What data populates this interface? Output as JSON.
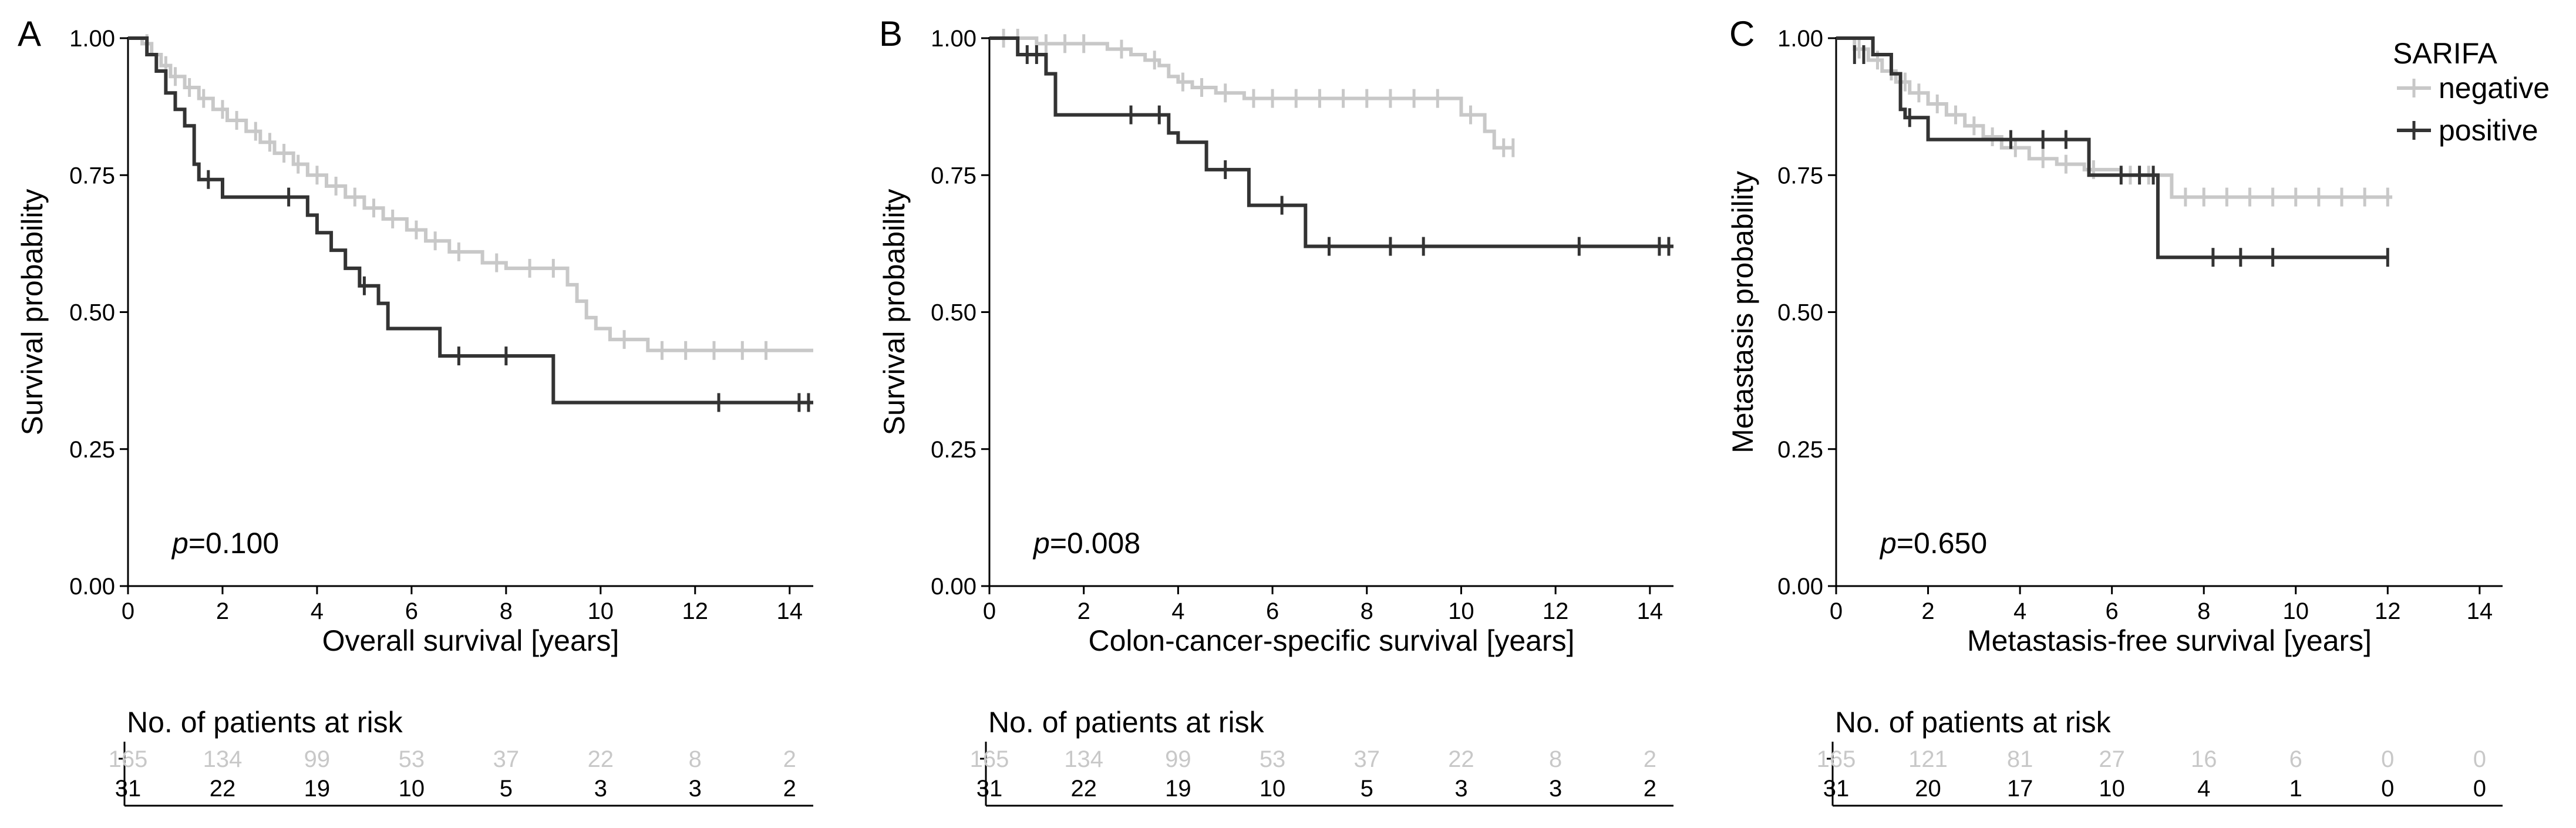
{
  "colors": {
    "negative": "#c8c8c8",
    "positive": "#333333",
    "axis": "#000000"
  },
  "legend": {
    "title": "SARIFA",
    "items": [
      {
        "label": "negative",
        "color": "#c8c8c8"
      },
      {
        "label": "positive",
        "color": "#333333"
      }
    ],
    "placement": "top-right"
  },
  "chart_data": [
    {
      "type": "line",
      "panel": "A",
      "title": "",
      "xlabel": "Overall survival [years]",
      "ylabel": "Survival probability",
      "xlim": [
        0,
        14.5
      ],
      "ylim": [
        0,
        1
      ],
      "xticks": [
        0,
        2,
        4,
        6,
        8,
        10,
        12,
        14
      ],
      "yticks": [
        0,
        0.25,
        0.5,
        0.75,
        1.0
      ],
      "ytick_labels": [
        "0.00",
        "0.25",
        "0.50",
        "0.75",
        "1.00"
      ],
      "pvalue_prefix": "p",
      "pvalue": "=0.100",
      "series": [
        {
          "name": "negative",
          "steps": [
            [
              0,
              1.0
            ],
            [
              0.3,
              0.99
            ],
            [
              0.5,
              0.97
            ],
            [
              0.7,
              0.95
            ],
            [
              0.9,
              0.93
            ],
            [
              1.2,
              0.91
            ],
            [
              1.5,
              0.89
            ],
            [
              1.8,
              0.87
            ],
            [
              2.1,
              0.85
            ],
            [
              2.5,
              0.83
            ],
            [
              2.8,
              0.81
            ],
            [
              3.1,
              0.79
            ],
            [
              3.5,
              0.77
            ],
            [
              3.8,
              0.75
            ],
            [
              4.2,
              0.73
            ],
            [
              4.6,
              0.71
            ],
            [
              5.0,
              0.69
            ],
            [
              5.4,
              0.67
            ],
            [
              5.9,
              0.65
            ],
            [
              6.3,
              0.63
            ],
            [
              6.8,
              0.61
            ],
            [
              7.5,
              0.59
            ],
            [
              8.0,
              0.58
            ],
            [
              9.3,
              0.55
            ],
            [
              9.5,
              0.52
            ],
            [
              9.7,
              0.49
            ],
            [
              9.9,
              0.47
            ],
            [
              10.2,
              0.45
            ],
            [
              11.0,
              0.43
            ],
            [
              14.5,
              0.43
            ]
          ],
          "censors": [
            [
              0.4,
              0.99
            ],
            [
              0.8,
              0.95
            ],
            [
              1.0,
              0.93
            ],
            [
              1.3,
              0.91
            ],
            [
              1.6,
              0.89
            ],
            [
              2.0,
              0.87
            ],
            [
              2.3,
              0.85
            ],
            [
              2.7,
              0.83
            ],
            [
              3.0,
              0.81
            ],
            [
              3.3,
              0.79
            ],
            [
              3.6,
              0.77
            ],
            [
              4.0,
              0.75
            ],
            [
              4.4,
              0.73
            ],
            [
              4.8,
              0.71
            ],
            [
              5.2,
              0.69
            ],
            [
              5.6,
              0.67
            ],
            [
              6.1,
              0.65
            ],
            [
              6.5,
              0.63
            ],
            [
              7.0,
              0.61
            ],
            [
              7.8,
              0.59
            ],
            [
              8.5,
              0.58
            ],
            [
              9.0,
              0.58
            ],
            [
              10.5,
              0.45
            ],
            [
              11.3,
              0.43
            ],
            [
              11.8,
              0.43
            ],
            [
              12.4,
              0.43
            ],
            [
              13.0,
              0.43
            ],
            [
              13.5,
              0.43
            ]
          ]
        },
        {
          "name": "positive",
          "steps": [
            [
              0,
              1.0
            ],
            [
              0.4,
              0.97
            ],
            [
              0.6,
              0.94
            ],
            [
              0.8,
              0.9
            ],
            [
              1.0,
              0.87
            ],
            [
              1.2,
              0.84
            ],
            [
              1.4,
              0.77
            ],
            [
              1.5,
              0.742
            ],
            [
              2.0,
              0.71
            ],
            [
              3.8,
              0.677
            ],
            [
              4.0,
              0.645
            ],
            [
              4.3,
              0.613
            ],
            [
              4.6,
              0.58
            ],
            [
              4.9,
              0.548
            ],
            [
              5.3,
              0.516
            ],
            [
              5.5,
              0.47
            ],
            [
              6.6,
              0.42
            ],
            [
              9.0,
              0.335
            ],
            [
              14.5,
              0.335
            ]
          ],
          "censors": [
            [
              1.7,
              0.742
            ],
            [
              3.4,
              0.71
            ],
            [
              5.0,
              0.548
            ],
            [
              7.0,
              0.42
            ],
            [
              8.0,
              0.42
            ],
            [
              12.5,
              0.335
            ],
            [
              14.2,
              0.335
            ],
            [
              14.4,
              0.335
            ]
          ]
        }
      ],
      "risk_table": {
        "title": "No. of patients at risk",
        "times": [
          0,
          2,
          4,
          6,
          8,
          10,
          12,
          14
        ],
        "negative": [
          "165",
          "134",
          "99",
          "53",
          "37",
          "22",
          "8",
          "2"
        ],
        "positive": [
          "31",
          "22",
          "19",
          "10",
          "5",
          "3",
          "3",
          "2"
        ]
      }
    },
    {
      "type": "line",
      "panel": "B",
      "title": "",
      "xlabel": "Colon-cancer-specific survival [years]",
      "ylabel": "Survival probability",
      "xlim": [
        0,
        14.5
      ],
      "ylim": [
        0,
        1
      ],
      "xticks": [
        0,
        2,
        4,
        6,
        8,
        10,
        12,
        14
      ],
      "yticks": [
        0,
        0.25,
        0.5,
        0.75,
        1.0
      ],
      "ytick_labels": [
        "0.00",
        "0.25",
        "0.50",
        "0.75",
        "1.00"
      ],
      "pvalue_prefix": "p",
      "pvalue": "=0.008",
      "series": [
        {
          "name": "negative",
          "steps": [
            [
              0,
              1.0
            ],
            [
              1.0,
              0.99
            ],
            [
              2.5,
              0.98
            ],
            [
              3.0,
              0.97
            ],
            [
              3.3,
              0.96
            ],
            [
              3.6,
              0.95
            ],
            [
              3.8,
              0.93
            ],
            [
              4.0,
              0.92
            ],
            [
              4.3,
              0.91
            ],
            [
              4.8,
              0.9
            ],
            [
              5.4,
              0.89
            ],
            [
              10.0,
              0.86
            ],
            [
              10.5,
              0.83
            ],
            [
              10.7,
              0.8
            ],
            [
              11.1,
              0.8
            ]
          ],
          "censors": [
            [
              0.3,
              1.0
            ],
            [
              0.6,
              1.0
            ],
            [
              1.2,
              0.99
            ],
            [
              1.6,
              0.99
            ],
            [
              2.0,
              0.99
            ],
            [
              2.8,
              0.98
            ],
            [
              3.5,
              0.96
            ],
            [
              4.1,
              0.92
            ],
            [
              4.5,
              0.91
            ],
            [
              5.0,
              0.9
            ],
            [
              5.6,
              0.89
            ],
            [
              6.0,
              0.89
            ],
            [
              6.5,
              0.89
            ],
            [
              7.0,
              0.89
            ],
            [
              7.5,
              0.89
            ],
            [
              8.0,
              0.89
            ],
            [
              8.5,
              0.89
            ],
            [
              9.0,
              0.89
            ],
            [
              9.5,
              0.89
            ],
            [
              10.2,
              0.86
            ],
            [
              10.9,
              0.8
            ],
            [
              11.1,
              0.8
            ]
          ]
        },
        {
          "name": "positive",
          "steps": [
            [
              0,
              1.0
            ],
            [
              0.6,
              0.97
            ],
            [
              1.2,
              0.935
            ],
            [
              1.4,
              0.86
            ],
            [
              3.8,
              0.827
            ],
            [
              4.0,
              0.81
            ],
            [
              4.6,
              0.76
            ],
            [
              5.5,
              0.695
            ],
            [
              6.7,
              0.62
            ],
            [
              14.5,
              0.62
            ]
          ],
          "censors": [
            [
              0.8,
              0.97
            ],
            [
              1.0,
              0.97
            ],
            [
              3.0,
              0.86
            ],
            [
              3.6,
              0.86
            ],
            [
              5.0,
              0.76
            ],
            [
              6.2,
              0.695
            ],
            [
              7.2,
              0.62
            ],
            [
              8.5,
              0.62
            ],
            [
              9.2,
              0.62
            ],
            [
              12.5,
              0.62
            ],
            [
              14.2,
              0.62
            ],
            [
              14.4,
              0.62
            ]
          ]
        }
      ],
      "risk_table": {
        "title": "No. of patients at risk",
        "times": [
          0,
          2,
          4,
          6,
          8,
          10,
          12,
          14
        ],
        "negative": [
          "165",
          "134",
          "99",
          "53",
          "37",
          "22",
          "8",
          "2"
        ],
        "positive": [
          "31",
          "22",
          "19",
          "10",
          "5",
          "3",
          "3",
          "2"
        ]
      }
    },
    {
      "type": "line",
      "panel": "C",
      "title": "",
      "xlabel": "Metastasis-free survival [years]",
      "ylabel": "Metastasis probability",
      "xlim": [
        0,
        14.5
      ],
      "ylim": [
        0,
        1
      ],
      "xticks": [
        0,
        2,
        4,
        6,
        8,
        10,
        12,
        14
      ],
      "yticks": [
        0,
        0.25,
        0.5,
        0.75,
        1.0
      ],
      "ytick_labels": [
        "0.00",
        "0.25",
        "0.50",
        "0.75",
        "1.00"
      ],
      "pvalue_prefix": "p",
      "pvalue": "=0.650",
      "series": [
        {
          "name": "negative",
          "steps": [
            [
              0,
              1.0
            ],
            [
              0.4,
              0.98
            ],
            [
              0.7,
              0.96
            ],
            [
              1.0,
              0.94
            ],
            [
              1.3,
              0.92
            ],
            [
              1.6,
              0.9
            ],
            [
              2.0,
              0.88
            ],
            [
              2.4,
              0.86
            ],
            [
              2.8,
              0.84
            ],
            [
              3.2,
              0.82
            ],
            [
              3.6,
              0.8
            ],
            [
              4.2,
              0.78
            ],
            [
              4.8,
              0.77
            ],
            [
              5.4,
              0.76
            ],
            [
              6.2,
              0.75
            ],
            [
              7.3,
              0.71
            ],
            [
              12.1,
              0.71
            ]
          ],
          "censors": [
            [
              0.5,
              0.98
            ],
            [
              0.9,
              0.96
            ],
            [
              1.2,
              0.94
            ],
            [
              1.5,
              0.92
            ],
            [
              1.8,
              0.9
            ],
            [
              2.2,
              0.88
            ],
            [
              2.6,
              0.86
            ],
            [
              3.0,
              0.84
            ],
            [
              3.4,
              0.82
            ],
            [
              3.9,
              0.8
            ],
            [
              4.5,
              0.78
            ],
            [
              5.0,
              0.77
            ],
            [
              5.6,
              0.76
            ],
            [
              6.4,
              0.75
            ],
            [
              6.8,
              0.75
            ],
            [
              7.6,
              0.71
            ],
            [
              8.0,
              0.71
            ],
            [
              8.5,
              0.71
            ],
            [
              9.0,
              0.71
            ],
            [
              9.5,
              0.71
            ],
            [
              10.0,
              0.71
            ],
            [
              10.5,
              0.71
            ],
            [
              11.0,
              0.71
            ],
            [
              11.5,
              0.71
            ],
            [
              12.0,
              0.71
            ]
          ]
        },
        {
          "name": "positive",
          "steps": [
            [
              0,
              1.0
            ],
            [
              0.8,
              0.97
            ],
            [
              1.2,
              0.935
            ],
            [
              1.4,
              0.87
            ],
            [
              1.5,
              0.855
            ],
            [
              2.0,
              0.815
            ],
            [
              5.5,
              0.75
            ],
            [
              7.0,
              0.6
            ],
            [
              12.0,
              0.6
            ]
          ],
          "censors": [
            [
              0.4,
              0.97
            ],
            [
              0.6,
              0.97
            ],
            [
              1.6,
              0.855
            ],
            [
              3.8,
              0.815
            ],
            [
              4.5,
              0.815
            ],
            [
              5.0,
              0.815
            ],
            [
              6.2,
              0.75
            ],
            [
              6.6,
              0.75
            ],
            [
              6.9,
              0.75
            ],
            [
              8.2,
              0.6
            ],
            [
              8.8,
              0.6
            ],
            [
              9.5,
              0.6
            ],
            [
              12.0,
              0.6
            ]
          ]
        }
      ],
      "risk_table": {
        "title": "No. of patients at risk",
        "times": [
          0,
          2,
          4,
          6,
          8,
          10,
          12,
          14
        ],
        "negative": [
          "165",
          "121",
          "81",
          "27",
          "16",
          "6",
          "0",
          "0"
        ],
        "positive": [
          "31",
          "20",
          "17",
          "10",
          "4",
          "1",
          "0",
          "0"
        ]
      }
    }
  ]
}
